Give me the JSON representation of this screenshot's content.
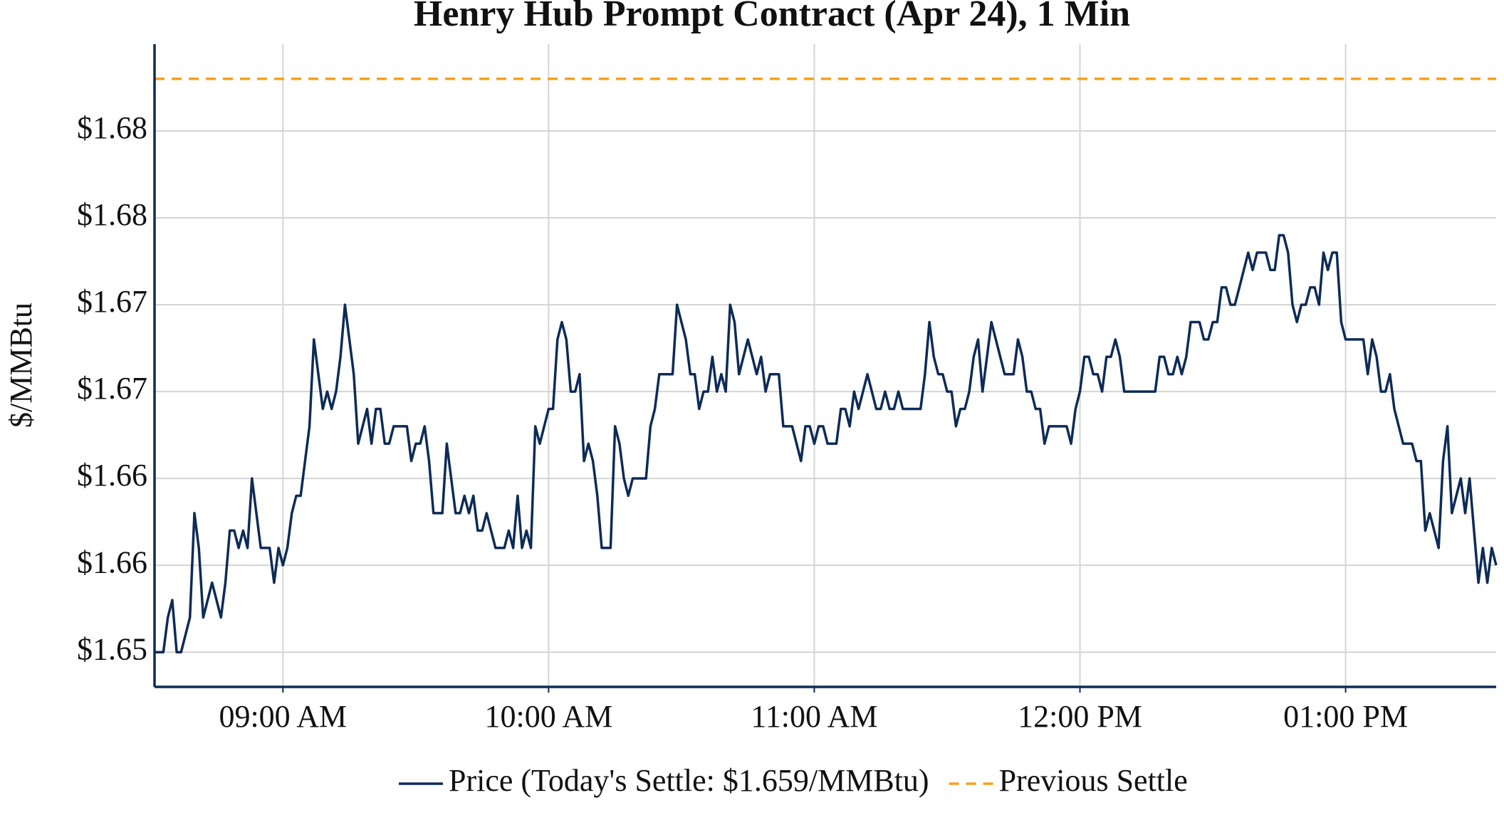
{
  "chart_data": {
    "type": "line",
    "title": "Henry Hub Prompt Contract (Apr 24), 1 Min",
    "y_label": "$/MMBtu",
    "x": [
      "08:31",
      "08:33",
      "08:34",
      "08:35",
      "08:36",
      "08:37",
      "08:39",
      "08:40",
      "08:41",
      "08:42",
      "08:44",
      "08:46",
      "08:47",
      "08:48",
      "08:49",
      "08:50",
      "08:51",
      "08:52",
      "08:53",
      "08:54",
      "08:55",
      "08:57",
      "08:58",
      "08:59",
      "09:00",
      "09:01",
      "09:02",
      "09:03",
      "09:04",
      "09:06",
      "09:07",
      "09:09",
      "09:10",
      "09:11",
      "09:12",
      "09:13",
      "09:14",
      "09:16",
      "09:17",
      "09:19",
      "09:20",
      "09:21",
      "09:22",
      "09:23",
      "09:24",
      "09:25",
      "09:28",
      "09:29",
      "09:30",
      "09:31",
      "09:32",
      "09:33",
      "09:34",
      "09:36",
      "09:37",
      "09:39",
      "09:40",
      "09:41",
      "09:42",
      "09:43",
      "09:44",
      "09:45",
      "09:46",
      "09:48",
      "09:50",
      "09:51",
      "09:52",
      "09:53",
      "09:54",
      "09:55",
      "09:56",
      "09:57",
      "09:58",
      "10:00",
      "10:01",
      "10:02",
      "10:03",
      "10:04",
      "10:05",
      "10:06",
      "10:07",
      "10:08",
      "10:09",
      "10:10",
      "10:11",
      "10:12",
      "10:14",
      "10:15",
      "10:16",
      "10:17",
      "10:18",
      "10:19",
      "10:22",
      "10:23",
      "10:24",
      "10:25",
      "10:28",
      "10:29",
      "10:31",
      "10:32",
      "10:33",
      "10:34",
      "10:35",
      "10:36",
      "10:37",
      "10:38",
      "10:39",
      "10:40",
      "10:41",
      "10:42",
      "10:43",
      "10:45",
      "10:47",
      "10:48",
      "10:49",
      "10:50",
      "10:52",
      "10:53",
      "10:55",
      "10:56",
      "10:57",
      "10:58",
      "10:59",
      "11:00",
      "11:01",
      "11:02",
      "11:03",
      "11:05",
      "11:06",
      "11:07",
      "11:08",
      "11:09",
      "11:10",
      "11:11",
      "11:12",
      "11:13",
      "11:14",
      "11:15",
      "11:16",
      "11:17",
      "11:18",
      "11:19",
      "11:20",
      "11:24",
      "11:25",
      "11:26",
      "11:27",
      "11:28",
      "11:29",
      "11:30",
      "11:31",
      "11:32",
      "11:33",
      "11:34",
      "11:35",
      "11:36",
      "11:37",
      "11:38",
      "11:39",
      "11:40",
      "11:42",
      "11:43",
      "11:45",
      "11:46",
      "11:47",
      "11:48",
      "11:49",
      "11:50",
      "11:51",
      "11:52",
      "11:53",
      "11:57",
      "11:58",
      "11:59",
      "12:00",
      "12:01",
      "12:02",
      "12:03",
      "12:04",
      "12:05",
      "12:06",
      "12:07",
      "12:08",
      "12:09",
      "12:10",
      "12:17",
      "12:18",
      "12:19",
      "12:20",
      "12:21",
      "12:22",
      "12:23",
      "12:24",
      "12:25",
      "12:27",
      "12:28",
      "12:29",
      "12:30",
      "12:31",
      "12:32",
      "12:33",
      "12:34",
      "12:35",
      "12:36",
      "12:38",
      "12:39",
      "12:40",
      "12:42",
      "12:43",
      "12:44",
      "12:45",
      "12:46",
      "12:47",
      "12:48",
      "12:49",
      "12:50",
      "12:51",
      "12:52",
      "12:53",
      "12:54",
      "12:55",
      "12:56",
      "12:57",
      "12:58",
      "12:59",
      "13:00",
      "13:04",
      "13:05",
      "13:06",
      "13:07",
      "13:08",
      "13:09",
      "13:10",
      "13:11",
      "13:13",
      "13:15",
      "13:16",
      "13:17",
      "13:18",
      "13:19",
      "13:20",
      "13:21",
      "13:22",
      "13:23",
      "13:24",
      "13:26",
      "13:27",
      "13:28",
      "13:29",
      "13:30",
      "13:31",
      "13:32",
      "13:33",
      "13:34"
    ],
    "series": [
      {
        "name": "Price (Today's Settle: $1.659/MMBtu)",
        "color": "#0d2b57",
        "values": [
          1.65,
          1.65,
          1.652,
          1.653,
          1.65,
          1.65,
          1.652,
          1.658,
          1.656,
          1.652,
          1.654,
          1.652,
          1.654,
          1.657,
          1.657,
          1.656,
          1.657,
          1.656,
          1.66,
          1.658,
          1.656,
          1.656,
          1.654,
          1.656,
          1.655,
          1.656,
          1.658,
          1.659,
          1.659,
          1.663,
          1.668,
          1.664,
          1.665,
          1.664,
          1.665,
          1.667,
          1.67,
          1.666,
          1.662,
          1.664,
          1.662,
          1.664,
          1.664,
          1.662,
          1.662,
          1.663,
          1.663,
          1.661,
          1.662,
          1.662,
          1.663,
          1.661,
          1.658,
          1.658,
          1.662,
          1.658,
          1.658,
          1.659,
          1.658,
          1.659,
          1.657,
          1.657,
          1.658,
          1.656,
          1.656,
          1.657,
          1.656,
          1.659,
          1.656,
          1.657,
          1.656,
          1.663,
          1.662,
          1.664,
          1.664,
          1.668,
          1.669,
          1.668,
          1.665,
          1.665,
          1.666,
          1.661,
          1.662,
          1.661,
          1.659,
          1.656,
          1.656,
          1.663,
          1.662,
          1.66,
          1.659,
          1.66,
          1.66,
          1.663,
          1.664,
          1.666,
          1.666,
          1.67,
          1.668,
          1.666,
          1.666,
          1.664,
          1.665,
          1.665,
          1.667,
          1.665,
          1.666,
          1.665,
          1.67,
          1.669,
          1.666,
          1.668,
          1.666,
          1.667,
          1.665,
          1.666,
          1.666,
          1.663,
          1.663,
          1.662,
          1.661,
          1.663,
          1.663,
          1.662,
          1.663,
          1.663,
          1.662,
          1.662,
          1.664,
          1.664,
          1.663,
          1.665,
          1.664,
          1.665,
          1.666,
          1.665,
          1.664,
          1.664,
          1.665,
          1.664,
          1.664,
          1.665,
          1.664,
          1.664,
          1.666,
          1.669,
          1.667,
          1.666,
          1.666,
          1.665,
          1.665,
          1.663,
          1.664,
          1.664,
          1.665,
          1.667,
          1.668,
          1.665,
          1.667,
          1.669,
          1.667,
          1.666,
          1.666,
          1.668,
          1.667,
          1.665,
          1.665,
          1.664,
          1.664,
          1.662,
          1.663,
          1.663,
          1.662,
          1.664,
          1.665,
          1.667,
          1.667,
          1.666,
          1.666,
          1.665,
          1.667,
          1.667,
          1.668,
          1.667,
          1.665,
          1.665,
          1.667,
          1.667,
          1.666,
          1.666,
          1.667,
          1.666,
          1.667,
          1.669,
          1.669,
          1.668,
          1.668,
          1.669,
          1.669,
          1.671,
          1.671,
          1.67,
          1.67,
          1.671,
          1.673,
          1.672,
          1.673,
          1.673,
          1.672,
          1.672,
          1.674,
          1.674,
          1.673,
          1.67,
          1.669,
          1.67,
          1.67,
          1.671,
          1.671,
          1.67,
          1.673,
          1.672,
          1.673,
          1.673,
          1.669,
          1.668,
          1.668,
          1.666,
          1.668,
          1.667,
          1.665,
          1.665,
          1.666,
          1.664,
          1.662,
          1.662,
          1.661,
          1.661,
          1.657,
          1.658,
          1.657,
          1.656,
          1.661,
          1.663,
          1.658,
          1.66,
          1.658,
          1.66,
          1.657,
          1.654,
          1.656,
          1.654,
          1.656,
          1.655
        ]
      }
    ],
    "reference_lines": [
      {
        "name": "Previous Settle",
        "value": 1.683,
        "color": "#f5a01f",
        "dashed": true
      }
    ],
    "xlim": [
      "08:31",
      "13:34"
    ],
    "xticks": [
      {
        "value": "09:00",
        "label": "09:00 AM"
      },
      {
        "value": "10:00",
        "label": "10:00 AM"
      },
      {
        "value": "11:00",
        "label": "11:00 AM"
      },
      {
        "value": "12:00",
        "label": "12:00 PM"
      },
      {
        "value": "13:00",
        "label": "01:00 PM"
      }
    ],
    "ylim": [
      1.648,
      1.685
    ],
    "yticks": [
      {
        "value": 1.65,
        "label": "$1.65"
      },
      {
        "value": 1.655,
        "label": "$1.66"
      },
      {
        "value": 1.66,
        "label": "$1.66"
      },
      {
        "value": 1.665,
        "label": "$1.67"
      },
      {
        "value": 1.67,
        "label": "$1.67"
      },
      {
        "value": 1.675,
        "label": "$1.68"
      },
      {
        "value": 1.68,
        "label": "$1.68"
      }
    ],
    "grid": true,
    "legend": "bottom"
  }
}
